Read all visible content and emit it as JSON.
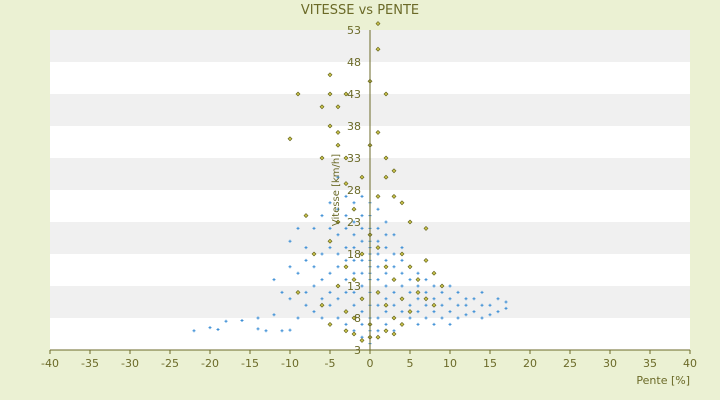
{
  "chart_data": {
    "type": "scatter",
    "title": "VITESSE vs PENTE",
    "xlabel": "Pente [%]",
    "ylabel": "Vitesse [km/h]",
    "xlim": [
      -40,
      40
    ],
    "ylim": [
      3,
      53
    ],
    "x_ticks": [
      "-40",
      "-35",
      "-30",
      "-25",
      "-20",
      "-15",
      "-10",
      "-5",
      "0",
      "5",
      "10",
      "15",
      "20",
      "25",
      "30",
      "35",
      "40"
    ],
    "y_ticks": [
      "3",
      "8",
      "13",
      "18",
      "23",
      "28",
      "33",
      "38",
      "43",
      "48",
      "53"
    ],
    "grid": "horizontal alternating bands",
    "legend": "none",
    "colors": {
      "background": "#ebf1d3",
      "plot_band_light": "#ffffff",
      "plot_band_dark": "#f0f0f0",
      "axis": "#6b6a28",
      "series_blue": "#3d8fd6",
      "series_olive_fill": "#c9c24a",
      "series_olive_edge": "#5a5a14"
    },
    "series": [
      {
        "color": "series_blue",
        "marker": "cross",
        "points": [
          [
            -22,
            6
          ],
          [
            -20,
            6.5
          ],
          [
            -19,
            6.2
          ],
          [
            -18,
            7.5
          ],
          [
            -16,
            7.6
          ],
          [
            -14,
            6.3
          ],
          [
            -14,
            8
          ],
          [
            -13,
            6
          ],
          [
            -12,
            8.5
          ],
          [
            -12,
            14
          ],
          [
            -11,
            6
          ],
          [
            -11,
            12
          ],
          [
            -10,
            6.1
          ],
          [
            -10,
            11
          ],
          [
            -10,
            16
          ],
          [
            -10,
            20
          ],
          [
            -9,
            8
          ],
          [
            -9,
            15
          ],
          [
            -9,
            22
          ],
          [
            -8,
            10
          ],
          [
            -8,
            12
          ],
          [
            -8,
            17
          ],
          [
            -8,
            19
          ],
          [
            -7,
            9
          ],
          [
            -7,
            13
          ],
          [
            -7,
            16
          ],
          [
            -7,
            22
          ],
          [
            -6,
            8
          ],
          [
            -6,
            11
          ],
          [
            -6,
            14
          ],
          [
            -6,
            18
          ],
          [
            -6,
            24
          ],
          [
            -5,
            7
          ],
          [
            -5,
            10
          ],
          [
            -5,
            12
          ],
          [
            -5,
            15
          ],
          [
            -5,
            19
          ],
          [
            -5,
            22
          ],
          [
            -5,
            26
          ],
          [
            -4,
            8
          ],
          [
            -4,
            11
          ],
          [
            -4,
            13
          ],
          [
            -4,
            16
          ],
          [
            -4,
            18
          ],
          [
            -4,
            21
          ],
          [
            -4,
            25
          ],
          [
            -4,
            30
          ],
          [
            -3,
            7
          ],
          [
            -3,
            9
          ],
          [
            -3,
            12
          ],
          [
            -3,
            14
          ],
          [
            -3,
            17
          ],
          [
            -3,
            19
          ],
          [
            -3,
            22
          ],
          [
            -3,
            24
          ],
          [
            -3,
            27
          ],
          [
            -2,
            6
          ],
          [
            -2,
            8
          ],
          [
            -2,
            10
          ],
          [
            -2,
            12
          ],
          [
            -2,
            15
          ],
          [
            -2,
            17
          ],
          [
            -2,
            19
          ],
          [
            -2,
            21
          ],
          [
            -2,
            23
          ],
          [
            -2,
            26
          ],
          [
            -1,
            5
          ],
          [
            -1,
            7
          ],
          [
            -1,
            9
          ],
          [
            -1,
            11
          ],
          [
            -1,
            13
          ],
          [
            -1,
            15
          ],
          [
            -1,
            17
          ],
          [
            -1,
            18
          ],
          [
            -1,
            20
          ],
          [
            -1,
            22
          ],
          [
            -1,
            24
          ],
          [
            -1,
            27
          ],
          [
            0,
            4
          ],
          [
            0,
            6
          ],
          [
            0,
            8
          ],
          [
            0,
            10
          ],
          [
            0,
            12
          ],
          [
            0,
            14
          ],
          [
            0,
            15
          ],
          [
            0,
            16
          ],
          [
            0,
            17
          ],
          [
            0,
            18
          ],
          [
            0,
            19
          ],
          [
            0,
            20
          ],
          [
            0,
            21
          ],
          [
            0,
            22
          ],
          [
            0,
            24
          ],
          [
            0,
            26
          ],
          [
            1,
            6
          ],
          [
            1,
            8
          ],
          [
            1,
            10
          ],
          [
            1,
            12
          ],
          [
            1,
            14
          ],
          [
            1,
            16
          ],
          [
            1,
            18
          ],
          [
            1,
            20
          ],
          [
            1,
            22
          ],
          [
            1,
            25
          ],
          [
            2,
            7
          ],
          [
            2,
            9
          ],
          [
            2,
            11
          ],
          [
            2,
            13
          ],
          [
            2,
            15
          ],
          [
            2,
            17
          ],
          [
            2,
            19
          ],
          [
            2,
            21
          ],
          [
            2,
            23
          ],
          [
            3,
            6
          ],
          [
            3,
            8
          ],
          [
            3,
            10
          ],
          [
            3,
            12
          ],
          [
            3,
            14
          ],
          [
            3,
            16
          ],
          [
            3,
            18
          ],
          [
            3,
            21
          ],
          [
            4,
            7
          ],
          [
            4,
            9
          ],
          [
            4,
            11
          ],
          [
            4,
            13
          ],
          [
            4,
            15
          ],
          [
            4,
            17
          ],
          [
            4,
            19
          ],
          [
            5,
            8
          ],
          [
            5,
            10
          ],
          [
            5,
            12
          ],
          [
            5,
            14
          ],
          [
            5,
            16
          ],
          [
            6,
            7
          ],
          [
            6,
            9
          ],
          [
            6,
            11
          ],
          [
            6,
            13
          ],
          [
            6,
            15
          ],
          [
            7,
            8
          ],
          [
            7,
            10
          ],
          [
            7,
            12
          ],
          [
            7,
            14
          ],
          [
            8,
            7
          ],
          [
            8,
            9
          ],
          [
            8,
            11
          ],
          [
            8,
            13
          ],
          [
            9,
            8
          ],
          [
            9,
            10
          ],
          [
            9,
            12
          ],
          [
            10,
            7
          ],
          [
            10,
            9
          ],
          [
            10,
            11
          ],
          [
            10,
            13
          ],
          [
            11,
            8
          ],
          [
            11,
            10
          ],
          [
            11,
            12
          ],
          [
            12,
            8.5
          ],
          [
            12,
            10
          ],
          [
            12,
            11
          ],
          [
            13,
            9
          ],
          [
            13,
            11
          ],
          [
            14,
            8
          ],
          [
            14,
            10
          ],
          [
            14,
            12
          ],
          [
            15,
            8.5
          ],
          [
            15,
            10
          ],
          [
            16,
            9
          ],
          [
            16,
            11
          ],
          [
            17,
            9.5
          ],
          [
            17,
            10.5
          ]
        ]
      },
      {
        "color": "series_olive",
        "marker": "diamond",
        "points": [
          [
            1,
            54
          ],
          [
            1,
            50
          ],
          [
            -9,
            43
          ],
          [
            -5,
            43
          ],
          [
            -3,
            43
          ],
          [
            -6,
            41
          ],
          [
            -4,
            41
          ],
          [
            2,
            43
          ],
          [
            0,
            45
          ],
          [
            -5,
            46
          ],
          [
            -10,
            36
          ],
          [
            -5,
            38
          ],
          [
            -4,
            37
          ],
          [
            -4,
            35
          ],
          [
            0,
            35
          ],
          [
            1,
            37
          ],
          [
            -6,
            33
          ],
          [
            -3,
            33
          ],
          [
            2,
            33
          ],
          [
            3,
            31
          ],
          [
            -3,
            29
          ],
          [
            -1,
            30
          ],
          [
            2,
            30
          ],
          [
            3,
            27
          ],
          [
            4,
            26
          ],
          [
            -8,
            24
          ],
          [
            -4,
            23
          ],
          [
            -2,
            25
          ],
          [
            1,
            27
          ],
          [
            5,
            23
          ],
          [
            7,
            22
          ],
          [
            -7,
            18
          ],
          [
            -5,
            20
          ],
          [
            -3,
            16
          ],
          [
            -2,
            14
          ],
          [
            -1,
            18
          ],
          [
            0,
            21
          ],
          [
            1,
            19
          ],
          [
            2,
            16
          ],
          [
            3,
            14
          ],
          [
            4,
            18
          ],
          [
            5,
            16
          ],
          [
            6,
            14
          ],
          [
            7,
            17
          ],
          [
            8,
            15
          ],
          [
            -9,
            12
          ],
          [
            -6,
            10
          ],
          [
            -4,
            13
          ],
          [
            -3,
            9
          ],
          [
            -1,
            11
          ],
          [
            1,
            12
          ],
          [
            2,
            10
          ],
          [
            3,
            8
          ],
          [
            4,
            11
          ],
          [
            5,
            9
          ],
          [
            6,
            12
          ],
          [
            7,
            11
          ],
          [
            8,
            10
          ],
          [
            9,
            13
          ],
          [
            -5,
            7
          ],
          [
            -3,
            6
          ],
          [
            -2,
            8
          ],
          [
            0,
            7
          ],
          [
            1,
            5
          ],
          [
            2,
            6
          ],
          [
            3,
            5.5
          ],
          [
            4,
            7
          ],
          [
            -1,
            4.5
          ],
          [
            0,
            5
          ],
          [
            -2,
            5.5
          ]
        ]
      }
    ]
  }
}
